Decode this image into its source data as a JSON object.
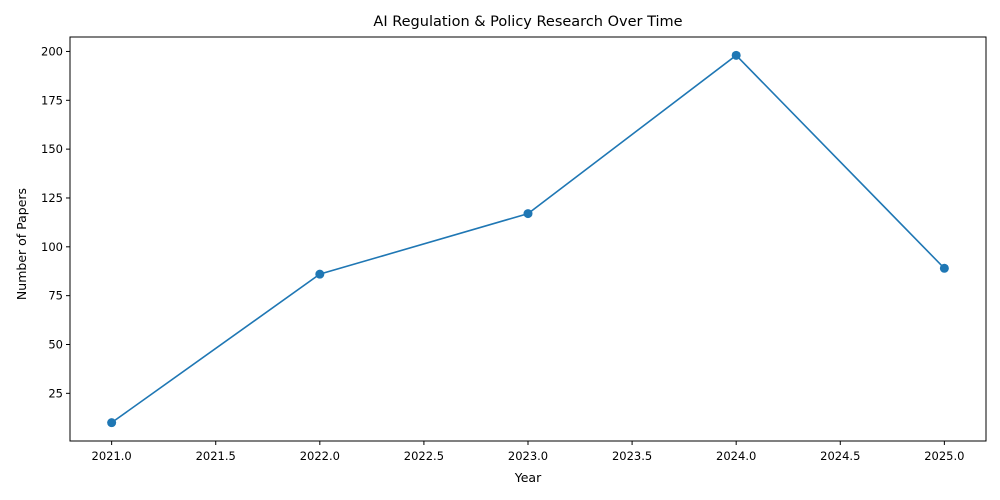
{
  "chart_data": {
    "type": "line",
    "title": "AI Regulation & Policy Research Over Time",
    "xlabel": "Year",
    "ylabel": "Number of Papers",
    "x": [
      2021,
      2022,
      2023,
      2024,
      2025
    ],
    "series": [
      {
        "values": [
          10,
          86,
          117,
          198,
          89
        ],
        "color": "#1f77b4"
      }
    ],
    "xlim": [
      2020.8,
      2025.2
    ],
    "ylim": [
      0.6,
      207.4
    ],
    "xticks": [
      "2021.0",
      "2021.5",
      "2022.0",
      "2022.5",
      "2023.0",
      "2023.5",
      "2024.0",
      "2024.5",
      "2025.0"
    ],
    "yticks": [
      "25",
      "50",
      "75",
      "100",
      "125",
      "150",
      "175",
      "200"
    ],
    "grid": false,
    "marker": "circle"
  }
}
